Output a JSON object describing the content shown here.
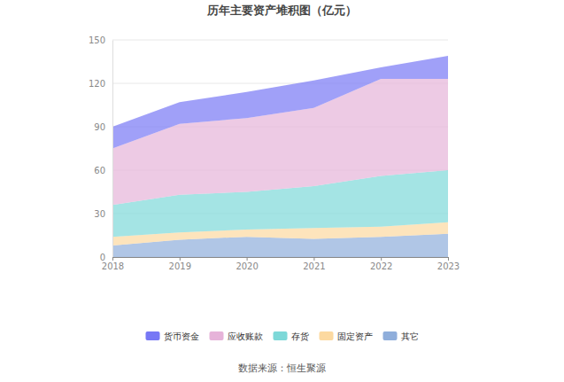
{
  "chart_data": {
    "type": "area",
    "title": "历年主要资产堆积图（亿元）",
    "categories": [
      "2018",
      "2019",
      "2020",
      "2021",
      "2022",
      "2023"
    ],
    "series": [
      {
        "name": "其它",
        "color": "#8faedb",
        "values": [
          8,
          12,
          14,
          12.5,
          14,
          16
        ]
      },
      {
        "name": "固定资产",
        "color": "#fcd9a0",
        "values": [
          6,
          5,
          5,
          7.5,
          7,
          8
        ]
      },
      {
        "name": "存货",
        "color": "#7dd8d8",
        "values": [
          22,
          26,
          26,
          29,
          35,
          36
        ]
      },
      {
        "name": "应收账款",
        "color": "#e6b3d9",
        "values": [
          39,
          49,
          51,
          54,
          67,
          63
        ]
      },
      {
        "name": "货币资金",
        "color": "#7778f5",
        "values": [
          15,
          15,
          18,
          19,
          8,
          16
        ]
      }
    ],
    "ylim": [
      0,
      150
    ],
    "yticks": [
      0,
      30,
      60,
      90,
      120,
      150
    ],
    "grid": true,
    "stacked": true,
    "legend": "bottom",
    "annotations": [
      "数据来源：恒生聚源"
    ]
  }
}
